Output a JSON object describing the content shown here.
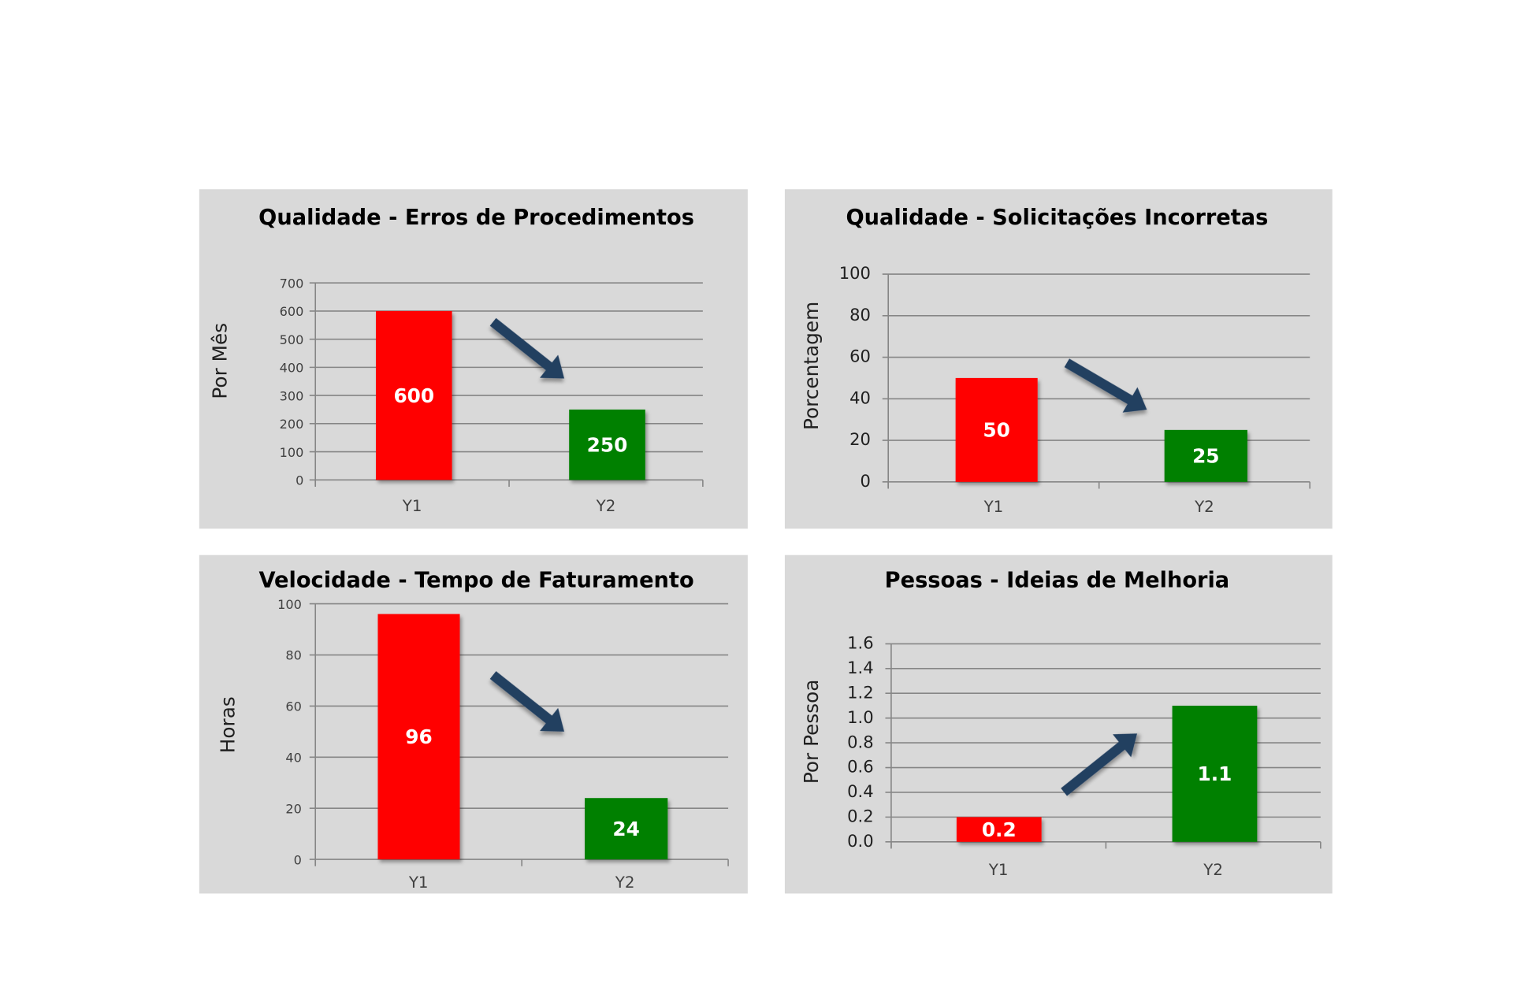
{
  "colors": {
    "panel": "#d9d9d9",
    "decrease_bar": "#ff0000",
    "increase_bar": "#008000",
    "arrow": "#243f60",
    "grid": "#868686"
  },
  "chart_data": [
    {
      "type": "bar",
      "title": "Qualidade - Erros de Procedimentos",
      "ylabel": "Por Mês",
      "xlabel": "",
      "categories": [
        "Y1",
        "Y2"
      ],
      "values": [
        600,
        250
      ],
      "value_labels": [
        "600",
        "250"
      ],
      "bar_colors": [
        "#ff0000",
        "#008000"
      ],
      "ylim": [
        0,
        700
      ],
      "yticks": [
        "0",
        "100",
        "200",
        "300",
        "400",
        "500",
        "600",
        "700"
      ],
      "trend": "down",
      "grid": true
    },
    {
      "type": "bar",
      "title": "Qualidade - Solicitações Incorretas",
      "ylabel": "Porcentagem",
      "xlabel": "",
      "categories": [
        "Y1",
        "Y2"
      ],
      "values": [
        50,
        25
      ],
      "value_labels": [
        "50",
        "25"
      ],
      "bar_colors": [
        "#ff0000",
        "#008000"
      ],
      "ylim": [
        0,
        100
      ],
      "yticks": [
        "0",
        "20",
        "40",
        "60",
        "80",
        "100"
      ],
      "trend": "down",
      "grid": true
    },
    {
      "type": "bar",
      "title": "Velocidade - Tempo de Faturamento",
      "ylabel": "Horas",
      "xlabel": "",
      "categories": [
        "Y1",
        "Y2"
      ],
      "values": [
        96,
        24
      ],
      "value_labels": [
        "96",
        "24"
      ],
      "bar_colors": [
        "#ff0000",
        "#008000"
      ],
      "ylim": [
        0,
        100
      ],
      "yticks": [
        "0",
        "20",
        "40",
        "60",
        "80",
        "100"
      ],
      "trend": "down",
      "grid": true
    },
    {
      "type": "bar",
      "title": "Pessoas - Ideias de Melhoria",
      "ylabel": "Por Pessoa",
      "xlabel": "",
      "categories": [
        "Y1",
        "Y2"
      ],
      "values": [
        0.2,
        1.1
      ],
      "value_labels": [
        "0.2",
        "1.1"
      ],
      "bar_colors": [
        "#ff0000",
        "#008000"
      ],
      "ylim": [
        0,
        1.6
      ],
      "yticks": [
        "0.0",
        "0.2",
        "0.4",
        "0.6",
        "0.8",
        "1.0",
        "1.2",
        "1.4",
        "1.6"
      ],
      "trend": "up",
      "grid": true
    }
  ]
}
